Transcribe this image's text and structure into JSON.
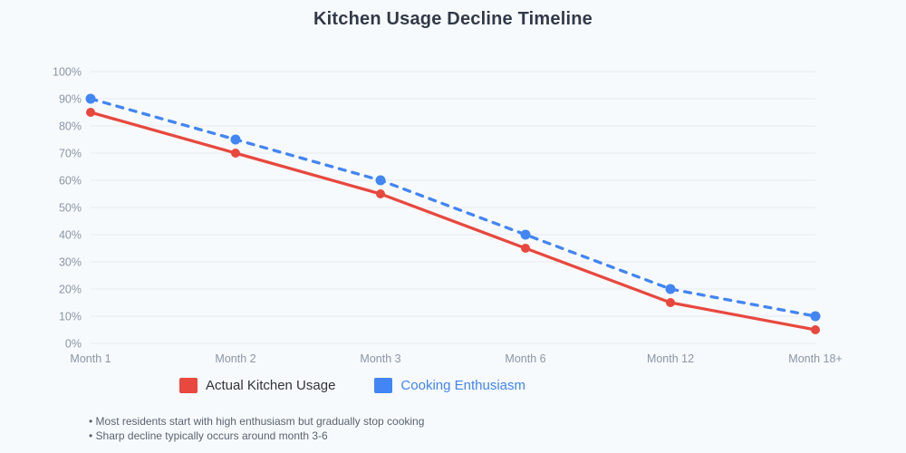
{
  "page": {
    "background_color": "#f7fafc"
  },
  "chart_data": {
    "type": "line",
    "title": "Kitchen Usage Decline Timeline",
    "categories": [
      "Month 1",
      "Month 2",
      "Month 3",
      "Month 6",
      "Month 12",
      "Month 18+"
    ],
    "series": [
      {
        "name": "Actual Kitchen Usage",
        "values": [
          85,
          70,
          55,
          35,
          15,
          5
        ],
        "color": "#e8483e",
        "line_style": "solid",
        "label_color": "#30343a"
      },
      {
        "name": "Cooking Enthusiasm",
        "values": [
          90,
          75,
          60,
          40,
          20,
          10
        ],
        "color": "#4285f4",
        "line_style": "dashed",
        "label_color": "#4285f4"
      }
    ],
    "xlabel": "",
    "ylabel": "",
    "ylim": [
      0,
      100
    ],
    "ytick_step": 10,
    "ytick_suffix": "%",
    "grid": true,
    "gridline_color": "#e9edf2",
    "tick_label_color": "#8b95a5",
    "legend_position": "bottom"
  },
  "notes": [
    "• Most residents start with high enthusiasm but gradually stop cooking",
    "• Sharp decline typically occurs around month 3-6"
  ]
}
